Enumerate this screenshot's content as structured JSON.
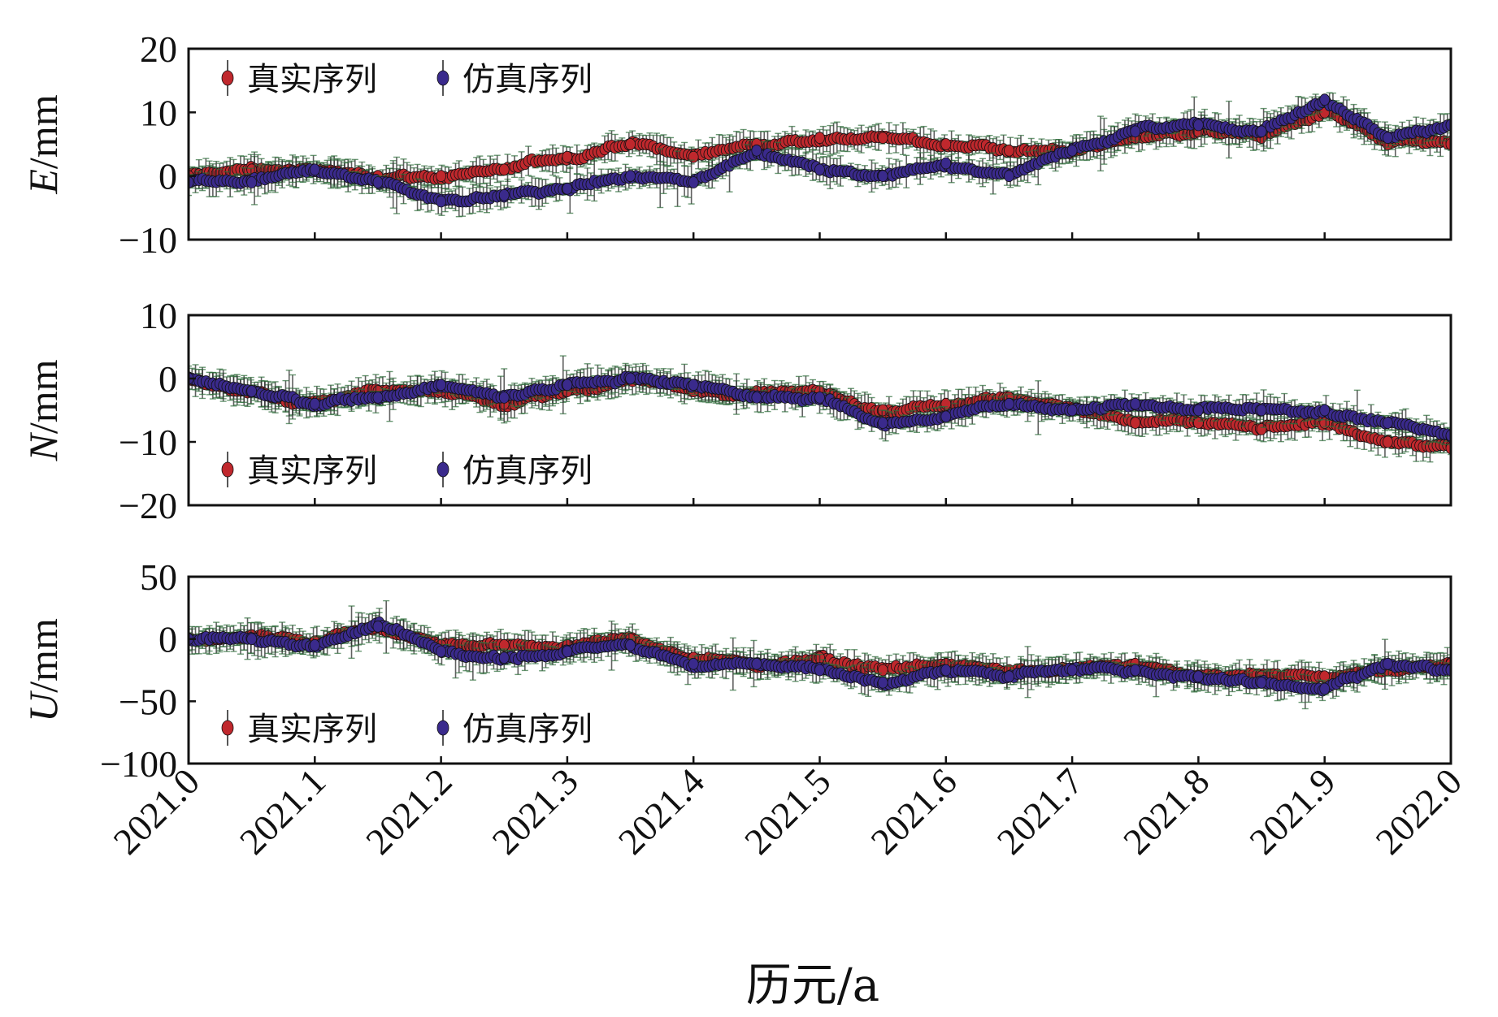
{
  "chart_data": {
    "type": "scatter",
    "style": "scatter with error bars, three stacked panels sharing x-axis",
    "xlabel": "历元/a",
    "xlim": [
      2021.0,
      2022.0
    ],
    "xticks": [
      "2021.0",
      "2021.1",
      "2021.2",
      "2021.3",
      "2021.4",
      "2021.5",
      "2021.6",
      "2021.7",
      "2021.8",
      "2021.9",
      "2022.0"
    ],
    "legend": [
      {
        "name": "真实序列",
        "color": "#c0282d"
      },
      {
        "name": "仿真序列",
        "color": "#3a2a8c"
      }
    ],
    "errorbar_color": "#2b2b2b",
    "panels": [
      {
        "component": "E",
        "ylabel_italic": "E",
        "ylabel_unit": "/mm",
        "ylim": [
          -10,
          20
        ],
        "yticks": [
          "−10",
          "0",
          "10",
          "20"
        ],
        "ytick_values": [
          -10,
          0,
          10,
          20
        ],
        "legend_position": "top-left",
        "series": [
          {
            "name": "真实序列",
            "x": [
              2021.0,
              2021.05,
              2021.1,
              2021.15,
              2021.2,
              2021.25,
              2021.3,
              2021.35,
              2021.4,
              2021.45,
              2021.5,
              2021.55,
              2021.6,
              2021.65,
              2021.7,
              2021.75,
              2021.8,
              2021.85,
              2021.9,
              2021.95,
              2022.0
            ],
            "y": [
              0,
              1,
              1,
              0,
              0,
              1,
              3,
              5,
              3,
              5,
              6,
              6,
              5,
              4,
              4,
              6,
              7,
              6,
              10,
              5,
              5
            ]
          },
          {
            "name": "仿真序列",
            "x": [
              2021.0,
              2021.05,
              2021.1,
              2021.15,
              2021.2,
              2021.25,
              2021.3,
              2021.35,
              2021.4,
              2021.45,
              2021.5,
              2021.55,
              2021.6,
              2021.65,
              2021.7,
              2021.75,
              2021.8,
              2021.85,
              2021.9,
              2021.95,
              2022.0
            ],
            "y": [
              -1,
              -1,
              1,
              -1,
              -4,
              -3,
              -2,
              0,
              -1,
              4,
              1,
              0,
              2,
              0,
              4,
              7,
              8,
              7,
              12,
              6,
              8
            ]
          }
        ]
      },
      {
        "component": "N",
        "ylabel_italic": "N",
        "ylabel_unit": "/mm",
        "ylim": [
          -20,
          10
        ],
        "yticks": [
          "−20",
          "−10",
          "0",
          "10"
        ],
        "ytick_values": [
          -20,
          -10,
          0,
          10
        ],
        "legend_position": "bottom-left",
        "series": [
          {
            "name": "真实序列",
            "x": [
              2021.0,
              2021.05,
              2021.1,
              2021.15,
              2021.2,
              2021.25,
              2021.3,
              2021.35,
              2021.4,
              2021.45,
              2021.5,
              2021.55,
              2021.6,
              2021.65,
              2021.7,
              2021.75,
              2021.8,
              2021.85,
              2021.9,
              2021.95,
              2022.0
            ],
            "y": [
              0,
              -2,
              -4,
              -2,
              -2,
              -4,
              -2,
              0,
              -2,
              -2,
              -2,
              -5,
              -4,
              -3,
              -5,
              -7,
              -7,
              -8,
              -7,
              -10,
              -11
            ]
          },
          {
            "name": "仿真序列",
            "x": [
              2021.0,
              2021.05,
              2021.1,
              2021.15,
              2021.2,
              2021.25,
              2021.3,
              2021.35,
              2021.4,
              2021.45,
              2021.5,
              2021.55,
              2021.6,
              2021.65,
              2021.7,
              2021.75,
              2021.8,
              2021.85,
              2021.9,
              2021.95,
              2022.0
            ],
            "y": [
              0,
              -2,
              -4,
              -3,
              -1,
              -3,
              -1,
              0,
              -1,
              -3,
              -3,
              -7,
              -6,
              -4,
              -5,
              -4,
              -5,
              -5,
              -5,
              -7,
              -9
            ]
          }
        ]
      },
      {
        "component": "U",
        "ylabel_italic": "U",
        "ylabel_unit": "/mm",
        "ylim": [
          -100,
          50
        ],
        "yticks": [
          "−100",
          "−50",
          "0",
          "50"
        ],
        "ytick_values": [
          -100,
          -50,
          0,
          50
        ],
        "legend_position": "bottom-left",
        "series": [
          {
            "name": "真实序列",
            "x": [
              2021.0,
              2021.05,
              2021.1,
              2021.15,
              2021.2,
              2021.25,
              2021.3,
              2021.35,
              2021.4,
              2021.45,
              2021.5,
              2021.55,
              2021.6,
              2021.65,
              2021.7,
              2021.75,
              2021.8,
              2021.85,
              2021.9,
              2021.95,
              2022.0
            ],
            "y": [
              0,
              3,
              -2,
              10,
              -5,
              -5,
              -5,
              0,
              -15,
              -20,
              -15,
              -25,
              -20,
              -25,
              -25,
              -20,
              -30,
              -30,
              -30,
              -25,
              -20
            ]
          },
          {
            "name": "仿真序列",
            "x": [
              2021.0,
              2021.05,
              2021.1,
              2021.15,
              2021.2,
              2021.25,
              2021.3,
              2021.35,
              2021.4,
              2021.45,
              2021.5,
              2021.55,
              2021.6,
              2021.65,
              2021.7,
              2021.75,
              2021.8,
              2021.85,
              2021.9,
              2021.95,
              2022.0
            ],
            "y": [
              0,
              0,
              -5,
              10,
              -10,
              -15,
              -10,
              -5,
              -20,
              -20,
              -25,
              -35,
              -25,
              -30,
              -25,
              -25,
              -30,
              -35,
              -40,
              -20,
              -25
            ]
          }
        ]
      }
    ]
  }
}
